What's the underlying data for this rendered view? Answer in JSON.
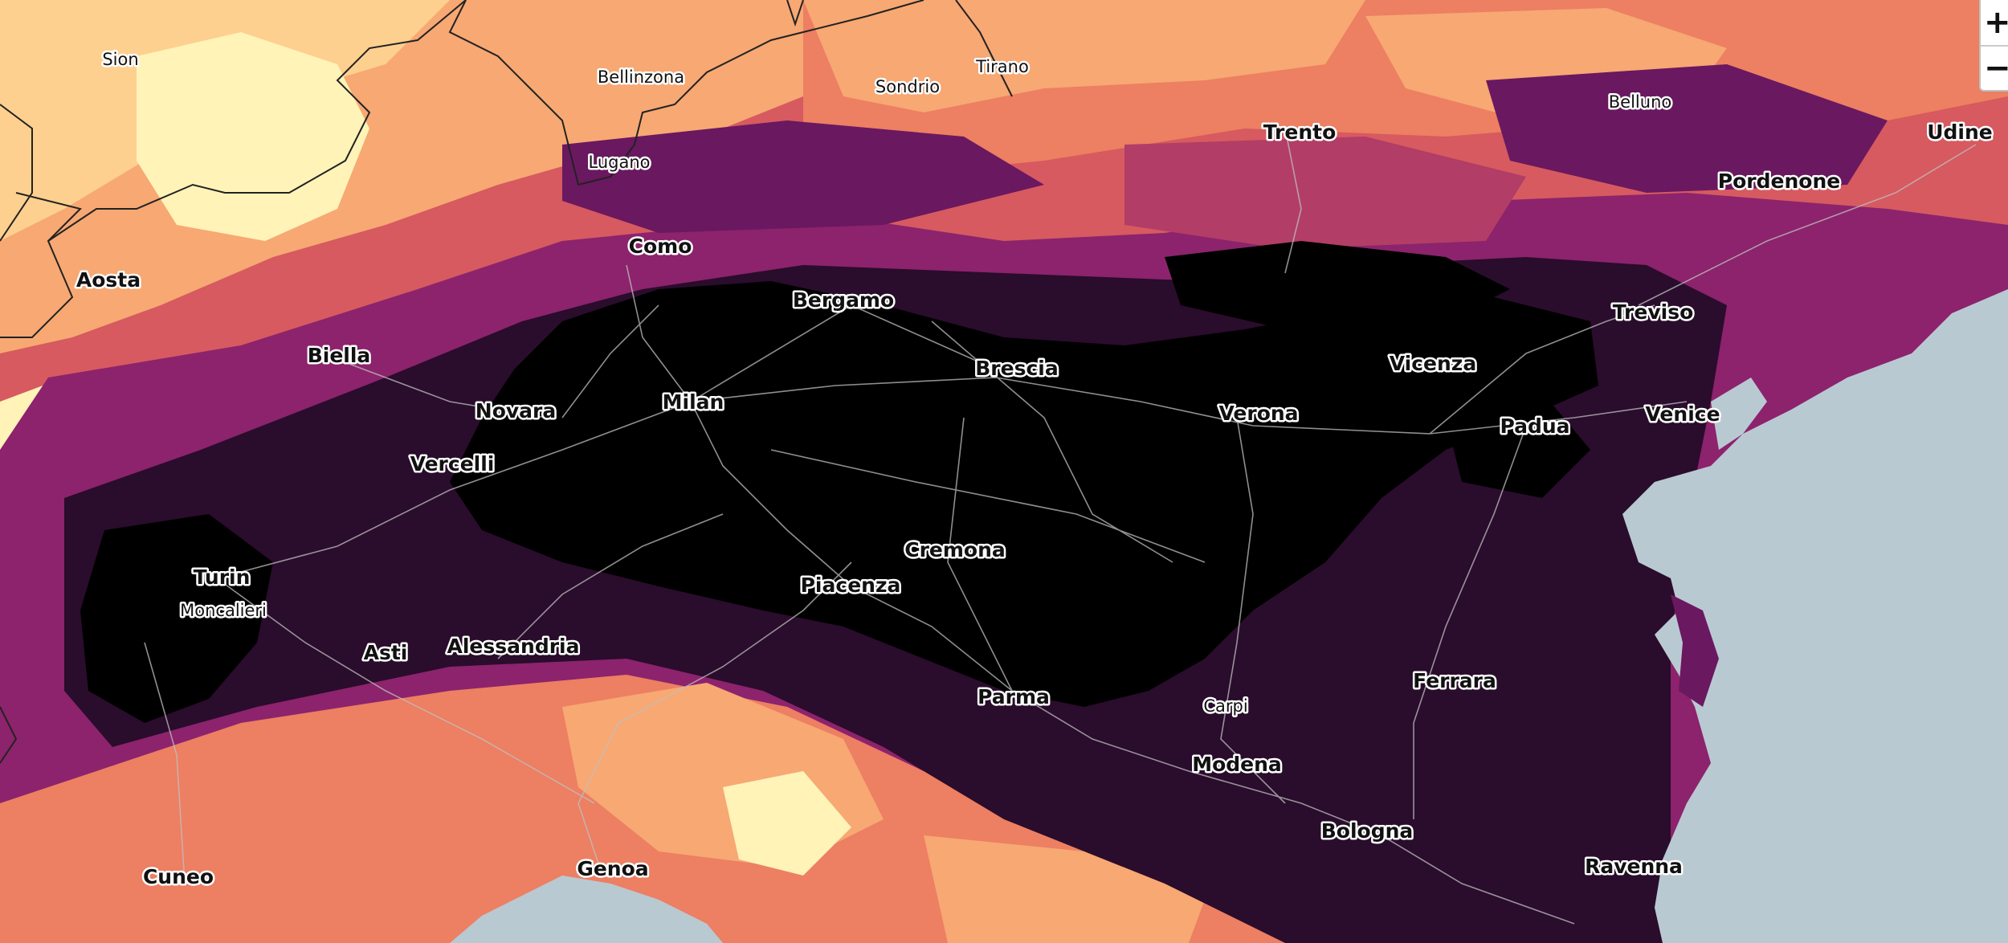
{
  "map": {
    "colors": {
      "sea": "#b9c9d2",
      "ramp": [
        "#fff3b8",
        "#fdd08f",
        "#f7a873",
        "#ed7f62",
        "#d65a60",
        "#b23d66",
        "#8c236c",
        "#6a1860",
        "#48124a",
        "#2a0c2c",
        "#000000"
      ],
      "roads": "#bfbfbf",
      "borders": "#222222"
    },
    "cities": [
      {
        "name": "Sion",
        "rank": "minor"
      },
      {
        "name": "Bellinzona",
        "rank": "minor"
      },
      {
        "name": "Sondrio",
        "rank": "minor"
      },
      {
        "name": "Tirano",
        "rank": "minor"
      },
      {
        "name": "Lugano",
        "rank": "minor"
      },
      {
        "name": "Belluno",
        "rank": "minor"
      },
      {
        "name": "Trento",
        "rank": "major"
      },
      {
        "name": "Udine",
        "rank": "major"
      },
      {
        "name": "Pordenone",
        "rank": "major"
      },
      {
        "name": "Como",
        "rank": "major"
      },
      {
        "name": "Aosta",
        "rank": "major"
      },
      {
        "name": "Bergamo",
        "rank": "major"
      },
      {
        "name": "Treviso",
        "rank": "major"
      },
      {
        "name": "Biella",
        "rank": "major"
      },
      {
        "name": "Brescia",
        "rank": "major"
      },
      {
        "name": "Vicenza",
        "rank": "major"
      },
      {
        "name": "Milan",
        "rank": "major"
      },
      {
        "name": "Novara",
        "rank": "major"
      },
      {
        "name": "Verona",
        "rank": "major"
      },
      {
        "name": "Venice",
        "rank": "major"
      },
      {
        "name": "Padua",
        "rank": "major"
      },
      {
        "name": "Vercelli",
        "rank": "major"
      },
      {
        "name": "Cremona",
        "rank": "major"
      },
      {
        "name": "Turin",
        "rank": "major"
      },
      {
        "name": "Piacenza",
        "rank": "major"
      },
      {
        "name": "Moncalieri",
        "rank": "minor"
      },
      {
        "name": "Asti",
        "rank": "major"
      },
      {
        "name": "Alessandria",
        "rank": "major"
      },
      {
        "name": "Ferrara",
        "rank": "major"
      },
      {
        "name": "Parma",
        "rank": "major"
      },
      {
        "name": "Carpi",
        "rank": "minor"
      },
      {
        "name": "Modena",
        "rank": "major"
      },
      {
        "name": "Bologna",
        "rank": "major"
      },
      {
        "name": "Cuneo",
        "rank": "major"
      },
      {
        "name": "Genoa",
        "rank": "major"
      },
      {
        "name": "Ravenna",
        "rank": "major"
      }
    ]
  },
  "controls": {
    "zoom_in_label": "+",
    "zoom_out_label": "−"
  }
}
